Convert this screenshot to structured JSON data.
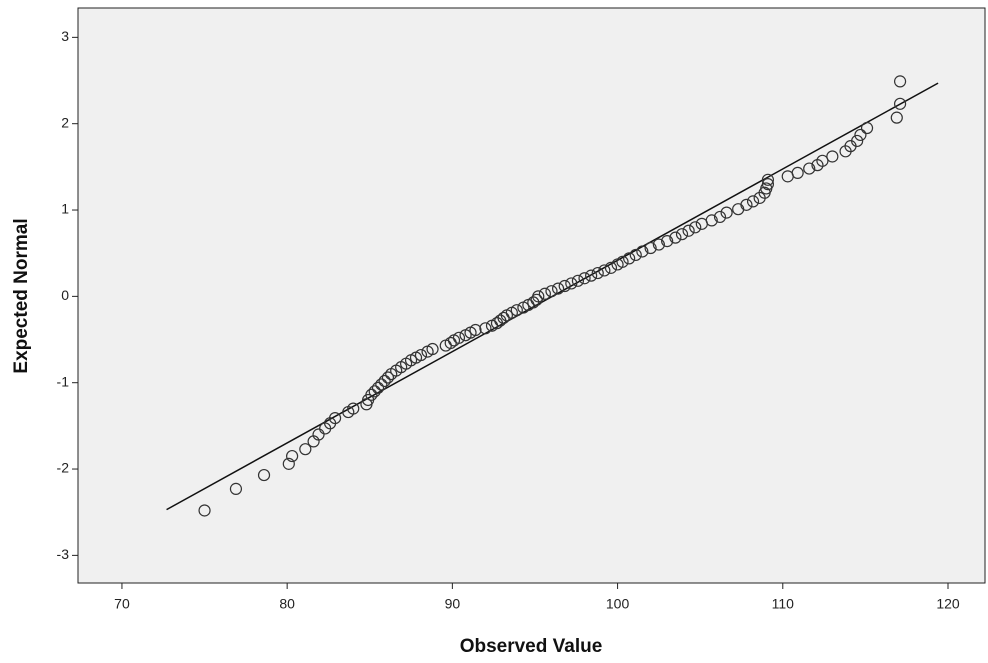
{
  "chart_data": {
    "type": "scatter",
    "x_label": "Observed Value",
    "y_label": "Expected Normal",
    "xlim": [
      67.34,
      122.24
    ],
    "xticks": [
      70,
      80,
      90,
      100,
      110,
      120
    ],
    "ylim": [
      -3.32,
      3.34
    ],
    "yticks": [
      -3,
      -2,
      -1,
      0,
      1,
      2,
      3
    ],
    "color": "#333333",
    "background": "#f0f0f0",
    "reference_line": {
      "x": [
        72.7,
        119.4
      ],
      "y": [
        -2.47,
        2.47
      ],
      "color": "#111111"
    },
    "x": [
      75,
      76.9,
      78.6,
      80.1,
      80.3,
      81.1,
      81.6,
      81.9,
      82.3,
      82.6,
      82.9,
      83.7,
      84,
      84.8,
      84.9,
      85.1,
      85.3,
      85.5,
      85.7,
      85.9,
      86.1,
      86.3,
      86.6,
      86.9,
      87.2,
      87.5,
      87.8,
      88.1,
      88.5,
      88.8,
      89.6,
      89.9,
      90.1,
      90.4,
      90.8,
      91.1,
      91.4,
      92,
      92.4,
      92.7,
      92.9,
      93.1,
      93.3,
      93.6,
      93.9,
      94.3,
      94.6,
      94.9,
      95.1,
      95.2,
      95.6,
      96,
      96.4,
      96.8,
      97.2,
      97.6,
      98,
      98.4,
      98.8,
      99.2,
      99.6,
      100,
      100.3,
      100.7,
      101.1,
      101.5,
      102,
      102.5,
      103,
      103.5,
      103.9,
      104.3,
      104.7,
      105.1,
      105.7,
      106.2,
      106.6,
      107.3,
      107.8,
      108.2,
      108.6,
      108.9,
      109,
      109.1,
      109.1,
      110.3,
      110.9,
      111.6,
      112.1,
      112.4,
      113,
      113.8,
      114.1,
      114.5,
      114.7,
      115.1,
      116.9,
      117.1,
      117.1
    ],
    "values": [
      -2.48,
      -2.23,
      -2.07,
      -1.94,
      -1.85,
      -1.77,
      -1.68,
      -1.6,
      -1.53,
      -1.47,
      -1.41,
      -1.34,
      -1.3,
      -1.25,
      -1.2,
      -1.14,
      -1.1,
      -1.06,
      -1.02,
      -0.98,
      -0.94,
      -0.9,
      -0.86,
      -0.82,
      -0.78,
      -0.74,
      -0.71,
      -0.68,
      -0.64,
      -0.61,
      -0.57,
      -0.54,
      -0.51,
      -0.48,
      -0.45,
      -0.42,
      -0.39,
      -0.37,
      -0.34,
      -0.31,
      -0.28,
      -0.25,
      -0.22,
      -0.19,
      -0.16,
      -0.13,
      -0.1,
      -0.07,
      -0.04,
      0,
      0.03,
      0.06,
      0.09,
      0.12,
      0.15,
      0.18,
      0.21,
      0.24,
      0.27,
      0.3,
      0.33,
      0.37,
      0.4,
      0.44,
      0.48,
      0.52,
      0.56,
      0.6,
      0.64,
      0.68,
      0.72,
      0.76,
      0.8,
      0.84,
      0.88,
      0.92,
      0.97,
      1.01,
      1.06,
      1.1,
      1.14,
      1.2,
      1.25,
      1.3,
      1.35,
      1.39,
      1.43,
      1.48,
      1.52,
      1.57,
      1.62,
      1.68,
      1.74,
      1.8,
      1.87,
      1.95,
      2.07,
      2.23,
      2.49
    ]
  }
}
